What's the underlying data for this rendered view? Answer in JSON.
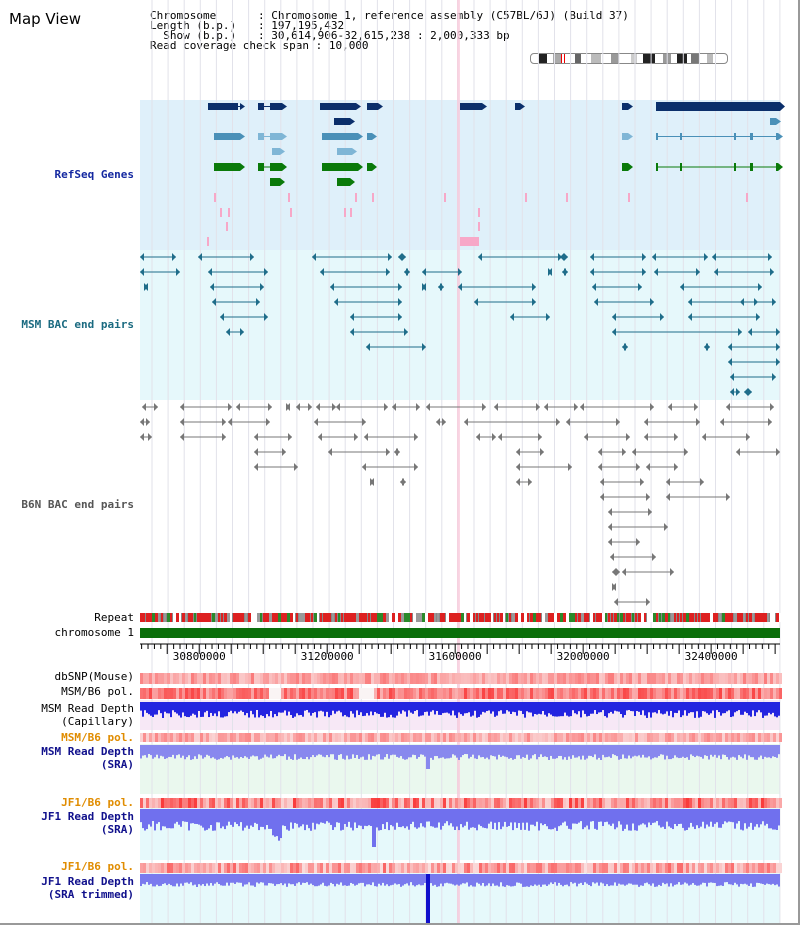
{
  "window": {
    "title": "Map View"
  },
  "info": {
    "rows": [
      {
        "key": "Chromosome",
        "value": ": Chromosome 1, reference assembly (C57BL/6J) (Build 37)"
      },
      {
        "key": "Length (b.p.)",
        "value": ": 197,195,432"
      },
      {
        "key": "  Show (b.p.)",
        "value": ": 30,614,906-32,615,238 : 2,000,333 bp"
      },
      {
        "key": "Read coverage check span",
        "value": ": 10,000"
      }
    ]
  },
  "tracks": {
    "refseq": "RefSeq Genes",
    "msm_bac": "MSM BAC end pairs",
    "b6n_bac": "B6N BAC end pairs",
    "repeat": "Repeat",
    "chromosome": "chromosome 1",
    "dbsnp": "dbSNP(Mouse)",
    "msm_b6_pol": "MSM/B6 pol.",
    "msm_depth_cap_1": "MSM Read Depth",
    "msm_depth_cap_2": "(Capillary)",
    "msm_b6_pol_2": "MSM/B6 pol.",
    "msm_depth_sra_1": "MSM Read Depth",
    "msm_depth_sra_2": "(SRA)",
    "jf1_b6_pol_1": "JF1/B6 pol.",
    "jf1_depth_sra_1": "JF1 Read Depth",
    "jf1_depth_sra_2": "(SRA)",
    "jf1_b6_pol_2": "JF1/B6 pol.",
    "jf1_depth_trim_1": "JF1 Read Depth",
    "jf1_depth_trim_2": "(SRA trimmed)"
  },
  "axis": {
    "range": [
      30614906,
      32615238
    ],
    "ticks": [
      30800000,
      31200000,
      31600000,
      32000000,
      32400000
    ],
    "tick_labels": [
      "30800000",
      "31200000",
      "31600000",
      "32000000",
      "32400000"
    ]
  },
  "colors": {
    "refseq_bg": "#dff0fa",
    "msm_bg": "#e6f8fb",
    "gene_dark": "#0b2f6b",
    "gene_mid": "#4a90b8",
    "gene_light": "#7fb6d6",
    "gene_green": "#0a7a0a",
    "pink": "#f7a8c8",
    "msm_pair": "#1f6d8a",
    "b6n_pair": "#777777",
    "chromosome_bar": "#0a6e0a",
    "depth_blue": "#2222dd",
    "pol_red": "#ee2222",
    "highlight": "#f9c6d8"
  }
}
